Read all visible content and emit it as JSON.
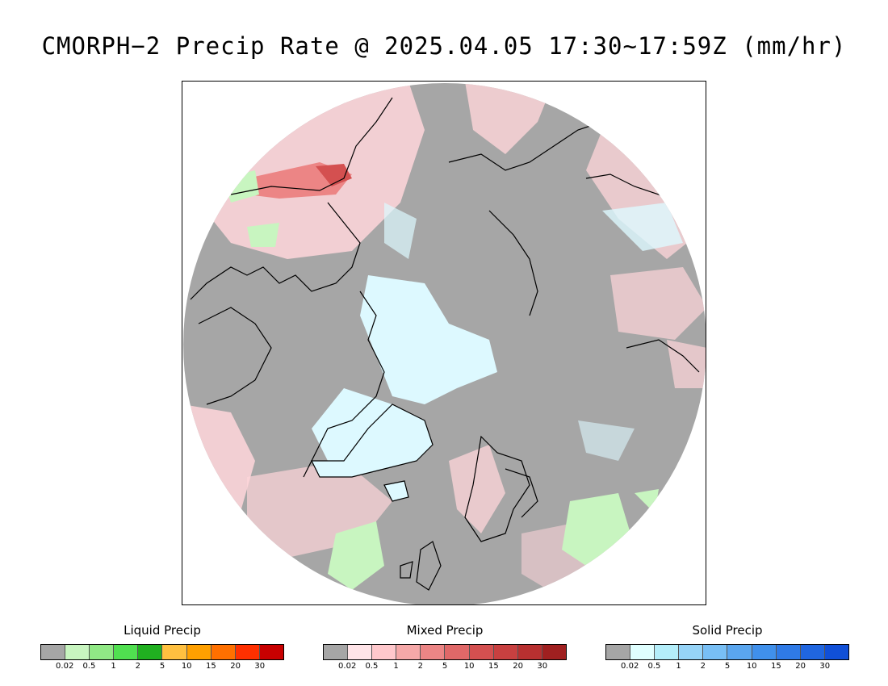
{
  "title": "CMORPH−2 Precip Rate @ 2025.04.05 17:30~17:59Z (mm/hr)",
  "map": {
    "projection": "polar stereographic (north pole)",
    "background_color": "#a6a6a6",
    "coastline_color": "#000000",
    "regions_shown": [
      "Alaska",
      "Canada",
      "Greenland",
      "Arctic Ocean",
      "Siberia",
      "Scandinavia",
      "Iceland",
      "British Isles"
    ]
  },
  "legends": [
    {
      "title": "Liquid Precip",
      "colors": [
        "#a6a6a6",
        "#c8f5c0",
        "#90e985",
        "#50e050",
        "#20b020",
        "#ffc040",
        "#ffa000",
        "#ff7000",
        "#ff3000",
        "#c80000"
      ],
      "ticks": [
        "0.02",
        "0.5",
        "1",
        "2",
        "5",
        "10",
        "15",
        "20",
        "30"
      ]
    },
    {
      "title": "Mixed Precip",
      "colors": [
        "#a6a6a6",
        "#ffe4e8",
        "#ffc8cc",
        "#f5a8a8",
        "#ec8585",
        "#e06868",
        "#d45050",
        "#c84040",
        "#b83030",
        "#a02020"
      ],
      "ticks": [
        "0.02",
        "0.5",
        "1",
        "2",
        "5",
        "10",
        "15",
        "20",
        "30"
      ]
    },
    {
      "title": "Solid Precip",
      "colors": [
        "#a6a6a6",
        "#e0ffff",
        "#b4eefa",
        "#96d4f8",
        "#78bff5",
        "#5aa6ef",
        "#4090eb",
        "#2f7ae6",
        "#2066e0",
        "#1050d8"
      ],
      "ticks": [
        "0.02",
        "0.5",
        "1",
        "2",
        "5",
        "10",
        "15",
        "20",
        "30"
      ]
    }
  ]
}
